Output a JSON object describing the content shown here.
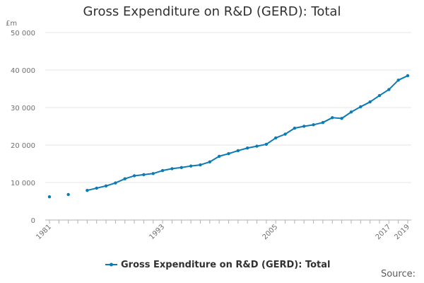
{
  "chart_data": {
    "type": "line",
    "title": "Gross Expenditure on R&D (GERD): Total",
    "ylabel": "£m",
    "ylim": [
      0,
      50000
    ],
    "yticks": [
      0,
      10000,
      20000,
      30000,
      40000,
      50000
    ],
    "ytick_labels": [
      "0",
      "10 000",
      "20 000",
      "30 000",
      "40 000",
      "50 000"
    ],
    "xlim": [
      1981,
      2019
    ],
    "xtick_labels": [
      "1981",
      "1993",
      "2005",
      "2017",
      "2019"
    ],
    "series": [
      {
        "name": "Gross Expenditure on R&D (GERD): Total",
        "color": "#0b7bb5",
        "x": [
          1981,
          1983,
          1985,
          1986,
          1987,
          1988,
          1989,
          1990,
          1991,
          1992,
          1993,
          1994,
          1995,
          1996,
          1997,
          1998,
          1999,
          2000,
          2001,
          2002,
          2003,
          2004,
          2005,
          2006,
          2007,
          2008,
          2009,
          2010,
          2011,
          2012,
          2013,
          2014,
          2015,
          2016,
          2017,
          2018,
          2019
        ],
        "values": [
          6200,
          6800,
          7900,
          8500,
          9100,
          9900,
          11000,
          11800,
          12100,
          12400,
          13200,
          13700,
          14000,
          14400,
          14700,
          15500,
          17000,
          17700,
          18500,
          19200,
          19700,
          20200,
          21900,
          22900,
          24500,
          25000,
          25400,
          26000,
          27300,
          27100,
          28800,
          30200,
          31500,
          33200,
          34800,
          37300,
          38500
        ]
      }
    ]
  },
  "source_label": "Source:"
}
